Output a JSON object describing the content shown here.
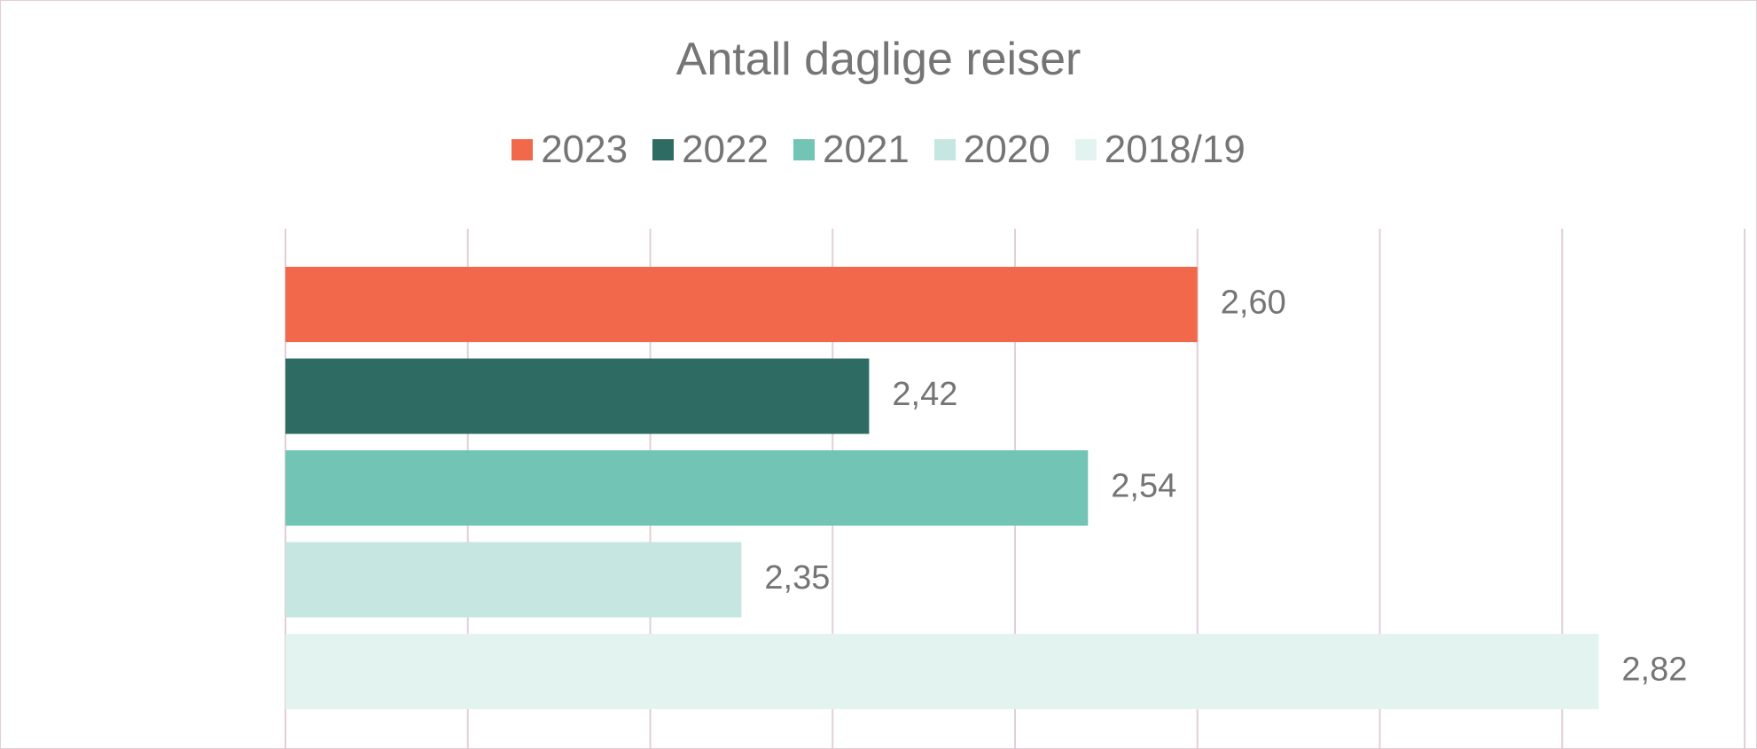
{
  "chart_data": {
    "type": "bar",
    "orientation": "horizontal",
    "title": "Antall daglige reiser",
    "categories": [
      "2023",
      "2022",
      "2021",
      "2020",
      "2018/19"
    ],
    "values": [
      2.6,
      2.42,
      2.54,
      2.35,
      2.82
    ],
    "data_labels": [
      "2,60",
      "2,42",
      "2,54",
      "2,35",
      "2,82"
    ],
    "colors": [
      "#f2684a",
      "#2e6b62",
      "#72c4b4",
      "#c6e6e1",
      "#e2f3f0"
    ],
    "xlim": [
      2.1,
      2.9
    ],
    "grid": true,
    "legend_position": "top",
    "xlabel": "",
    "ylabel": ""
  }
}
